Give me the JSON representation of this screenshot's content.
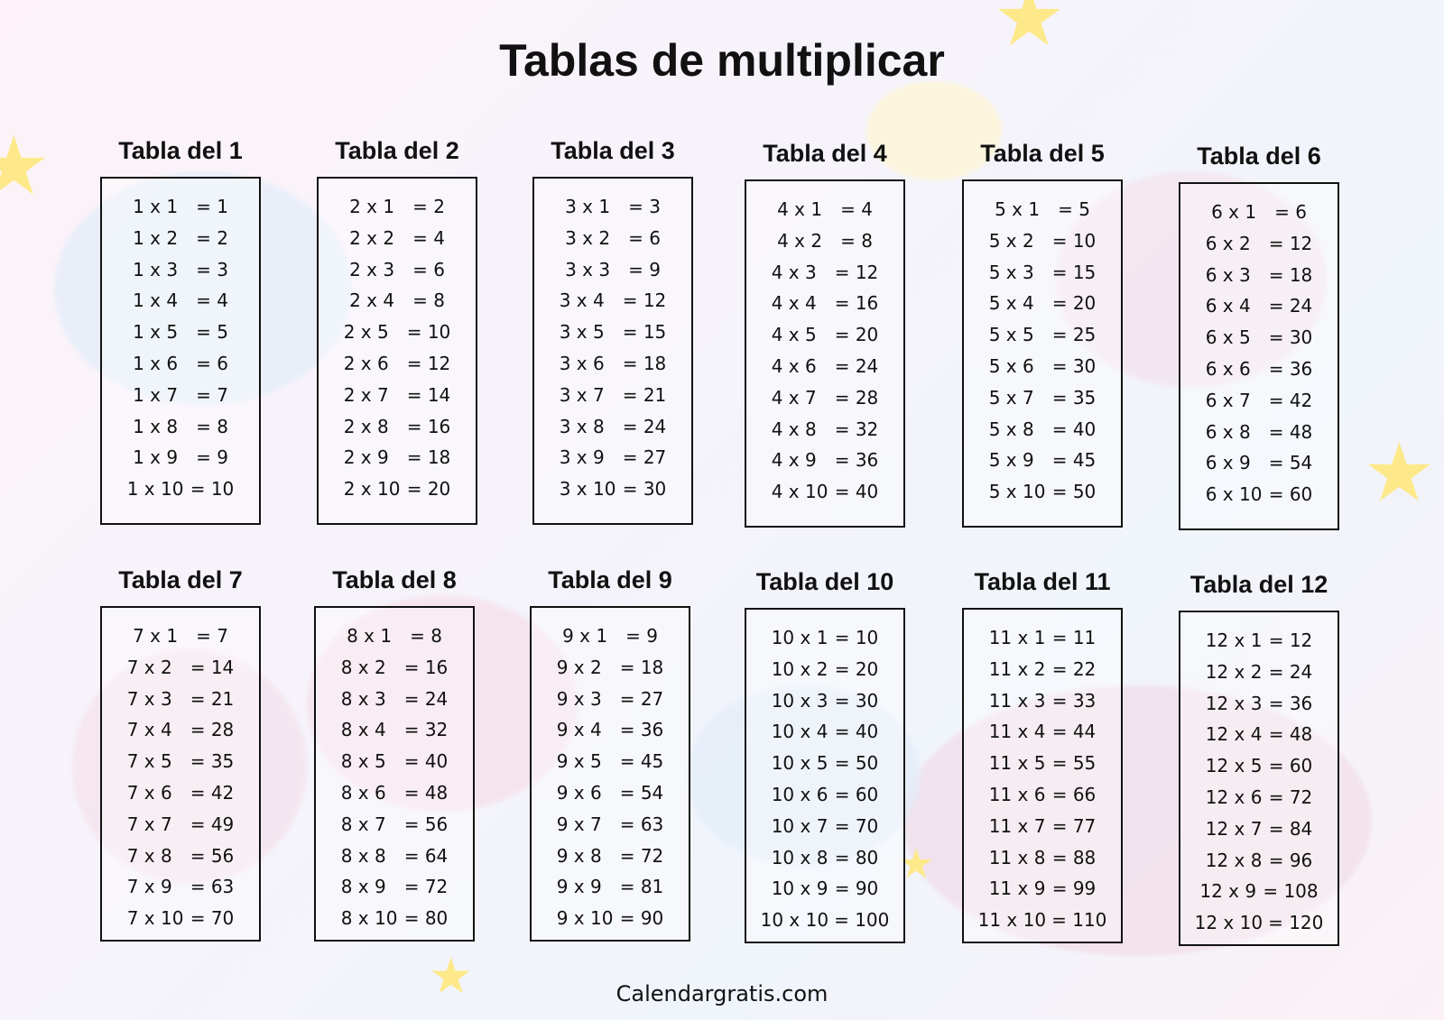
{
  "title": "Tablas de multiplicar",
  "footer": "Calendargratis.com",
  "colors": {
    "background_pink": "#fdf3f8",
    "background_blue": "#f0f4fb",
    "star_yellow": "#fde98a",
    "text": "#111111"
  },
  "tables": [
    {
      "title": "Tabla del 1",
      "rows": [
        [
          "1 x 1",
          "= 1"
        ],
        [
          "1 x 2",
          "= 2"
        ],
        [
          "1 x 3",
          "= 3"
        ],
        [
          "1 x 4",
          "= 4"
        ],
        [
          "1 x 5",
          "= 5"
        ],
        [
          "1 x 6",
          "= 6"
        ],
        [
          "1 x 7",
          "= 7"
        ],
        [
          "1 x 8",
          "= 8"
        ],
        [
          "1 x 9",
          "= 9"
        ],
        [
          "1 x 10",
          "= 10"
        ]
      ]
    },
    {
      "title": "Tabla del 2",
      "rows": [
        [
          "2 x 1",
          "= 2"
        ],
        [
          "2 x 2",
          "= 4"
        ],
        [
          "2 x 3",
          "= 6"
        ],
        [
          "2 x 4",
          "= 8"
        ],
        [
          "2 x 5",
          "= 10"
        ],
        [
          "2 x 6",
          "= 12"
        ],
        [
          "2 x 7",
          "= 14"
        ],
        [
          "2 x 8",
          "= 16"
        ],
        [
          "2 x 9",
          "= 18"
        ],
        [
          "2 x 10",
          "= 20"
        ]
      ]
    },
    {
      "title": "Tabla del 3",
      "rows": [
        [
          "3 x 1",
          "= 3"
        ],
        [
          "3 x 2",
          "= 6"
        ],
        [
          "3 x 3",
          "= 9"
        ],
        [
          "3 x 4",
          "= 12"
        ],
        [
          "3 x 5",
          "= 15"
        ],
        [
          "3 x 6",
          "= 18"
        ],
        [
          "3 x 7",
          "= 21"
        ],
        [
          "3 x 8",
          "= 24"
        ],
        [
          "3 x 9",
          "= 27"
        ],
        [
          "3 x 10",
          "= 30"
        ]
      ]
    },
    {
      "title": "Tabla del 4",
      "rows": [
        [
          "4 x 1",
          "= 4"
        ],
        [
          "4 x 2",
          "= 8"
        ],
        [
          "4 x 3",
          "= 12"
        ],
        [
          "4 x 4",
          "= 16"
        ],
        [
          "4 x 5",
          "= 20"
        ],
        [
          "4 x 6",
          "= 24"
        ],
        [
          "4 x 7",
          "= 28"
        ],
        [
          "4 x 8",
          "= 32"
        ],
        [
          "4 x 9",
          "= 36"
        ],
        [
          "4 x 10",
          "= 40"
        ]
      ]
    },
    {
      "title": "Tabla del 5",
      "rows": [
        [
          "5 x 1",
          "= 5"
        ],
        [
          "5 x 2",
          "= 10"
        ],
        [
          "5 x 3",
          "= 15"
        ],
        [
          "5 x 4",
          "= 20"
        ],
        [
          "5 x 5",
          "= 25"
        ],
        [
          "5 x 6",
          "= 30"
        ],
        [
          "5 x 7",
          "= 35"
        ],
        [
          "5 x 8",
          "= 40"
        ],
        [
          "5 x 9",
          "= 45"
        ],
        [
          "5 x 10",
          "= 50"
        ]
      ]
    },
    {
      "title": "Tabla del 6",
      "rows": [
        [
          "6 x 1",
          "= 6"
        ],
        [
          "6 x 2",
          "= 12"
        ],
        [
          "6 x 3",
          "= 18"
        ],
        [
          "6 x 4",
          "= 24"
        ],
        [
          "6 x 5",
          "= 30"
        ],
        [
          "6 x 6",
          "= 36"
        ],
        [
          "6 x 7",
          "= 42"
        ],
        [
          "6 x 8",
          "= 48"
        ],
        [
          "6 x 9",
          "= 54"
        ],
        [
          "6 x 10",
          "= 60"
        ]
      ]
    },
    {
      "title": "Tabla del 7",
      "rows": [
        [
          "7 x 1",
          "= 7"
        ],
        [
          "7 x 2",
          "= 14"
        ],
        [
          "7 x 3",
          "= 21"
        ],
        [
          "7 x 4",
          "= 28"
        ],
        [
          "7 x 5",
          "= 35"
        ],
        [
          "7 x 6",
          "= 42"
        ],
        [
          "7 x 7",
          "= 49"
        ],
        [
          "7 x 8",
          "= 56"
        ],
        [
          "7 x 9",
          "= 63"
        ],
        [
          "7 x 10",
          "= 70"
        ]
      ]
    },
    {
      "title": "Tabla del 8",
      "rows": [
        [
          "8 x 1",
          "= 8"
        ],
        [
          "8 x 2",
          "= 16"
        ],
        [
          "8 x 3",
          "= 24"
        ],
        [
          "8 x 4",
          "= 32"
        ],
        [
          "8 x 5",
          "= 40"
        ],
        [
          "8 x 6",
          "= 48"
        ],
        [
          "8 x 7",
          "= 56"
        ],
        [
          "8 x 8",
          "= 64"
        ],
        [
          "8 x 9",
          "= 72"
        ],
        [
          "8 x 10",
          "= 80"
        ]
      ]
    },
    {
      "title": "Tabla del 9",
      "rows": [
        [
          "9 x 1",
          "= 9"
        ],
        [
          "9 x 2",
          "= 18"
        ],
        [
          "9 x 3",
          "= 27"
        ],
        [
          "9 x 4",
          "= 36"
        ],
        [
          "9 x 5",
          "= 45"
        ],
        [
          "9 x 6",
          "= 54"
        ],
        [
          "9 x 7",
          "= 63"
        ],
        [
          "9 x 8",
          "= 72"
        ],
        [
          "9 x 9",
          "= 81"
        ],
        [
          "9 x 10",
          "= 90"
        ]
      ]
    },
    {
      "title": "Tabla del 10",
      "rows": [
        [
          "10 x 1",
          "= 10"
        ],
        [
          "10 x 2",
          "= 20"
        ],
        [
          "10 x 3",
          "= 30"
        ],
        [
          "10 x 4",
          "= 40"
        ],
        [
          "10 x 5",
          "= 50"
        ],
        [
          "10 x 6",
          "= 60"
        ],
        [
          "10 x 7",
          "= 70"
        ],
        [
          "10 x 8",
          "= 80"
        ],
        [
          "10 x 9",
          "= 90"
        ],
        [
          "10 x 10",
          "= 100"
        ]
      ]
    },
    {
      "title": "Tabla del 11",
      "rows": [
        [
          "11 x 1",
          "= 11"
        ],
        [
          "11 x 2",
          "= 22"
        ],
        [
          "11 x 3",
          "= 33"
        ],
        [
          "11 x 4",
          "= 44"
        ],
        [
          "11 x 5",
          "= 55"
        ],
        [
          "11 x 6",
          "= 66"
        ],
        [
          "11 x 7",
          "= 77"
        ],
        [
          "11 x 8",
          "= 88"
        ],
        [
          "11 x 9",
          "= 99"
        ],
        [
          "11 x 10",
          "= 110"
        ]
      ]
    },
    {
      "title": "Tabla del 12",
      "rows": [
        [
          "12 x 1",
          "= 12"
        ],
        [
          "12 x 2",
          "= 24"
        ],
        [
          "12 x 3",
          "= 36"
        ],
        [
          "12 x 4",
          "= 48"
        ],
        [
          "12 x 5",
          "= 60"
        ],
        [
          "12 x 6",
          "= 72"
        ],
        [
          "12 x 7",
          "= 84"
        ],
        [
          "12 x 8",
          "= 96"
        ],
        [
          "12 x 9",
          "= 108"
        ],
        [
          "12 x 10",
          "= 120"
        ]
      ]
    }
  ]
}
